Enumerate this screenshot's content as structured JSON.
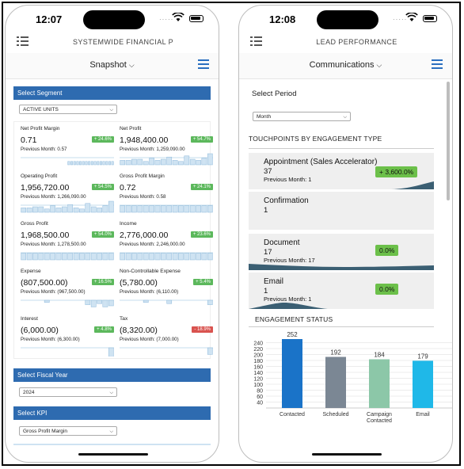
{
  "phone1": {
    "time": "12:07",
    "app_title": "SYSTEMWIDE FINANCIAL P",
    "subtitle": "Snapshot",
    "segment": {
      "header": "Select Segment",
      "value": "ACTIVE UNITS"
    },
    "metrics": [
      {
        "name": "Net Profit Margin",
        "value": "0.71",
        "badge": "+ 24.6%",
        "badge_tone": "positive",
        "prev": "Previous Month: 0.57",
        "bars": [
          0,
          0,
          0,
          0,
          0,
          0,
          0,
          0,
          0,
          0,
          0,
          0,
          0,
          0,
          0,
          0,
          0.3,
          0.3,
          0.3,
          0.3,
          0.3,
          0.3,
          0.3,
          0.3,
          0.3,
          0.3,
          0.3,
          0.3,
          0.3,
          0.3,
          0.3,
          0.3
        ]
      },
      {
        "name": "Net Profit",
        "value": "1,948,400.00",
        "badge": "+ 54.7%",
        "badge_tone": "positive",
        "prev": "Previous Month: 1,259,090.00",
        "bars": [
          0.4,
          0.4,
          0.5,
          0.5,
          0.3,
          0.6,
          0.4,
          0.5,
          0.7,
          0.4,
          0.3,
          0.8,
          0.5,
          0.4,
          0.6,
          1.0
        ]
      },
      {
        "name": "Operating Profit",
        "value": "1,956,720.00",
        "badge": "+ 54.5%",
        "badge_tone": "positive",
        "prev": "Previous Month: 1,266,090.00",
        "bars": [
          0.4,
          0.4,
          0.5,
          0.5,
          0.3,
          0.6,
          0.4,
          0.5,
          0.7,
          0.4,
          0.3,
          0.8,
          0.5,
          0.4,
          0.6,
          1.0
        ]
      },
      {
        "name": "Gross Profit Margin",
        "value": "0.72",
        "badge": "+ 24.1%",
        "badge_tone": "positive",
        "prev": "Previous Month: 0.58",
        "bars": [
          0.6,
          0.6,
          0.6,
          0.6,
          0.6,
          0.6,
          0.6,
          0.6,
          0.6,
          0.6,
          0.6,
          0.6,
          0.6,
          0.6,
          0.6,
          0.6
        ]
      },
      {
        "name": "Gross Profit",
        "value": "1,968,500.00",
        "badge": "+ 54.0%",
        "badge_tone": "positive",
        "prev": "Previous Month: 1,278,500.00",
        "bars": [
          0.6,
          0.6,
          0.6,
          0.6,
          0.6,
          0.6,
          0.6,
          0.6,
          0.6,
          0.6,
          0.6,
          0.6,
          0.6,
          0.6,
          0.6,
          0.6
        ]
      },
      {
        "name": "Income",
        "value": "2,776,000.00",
        "badge": "+ 23.6%",
        "badge_tone": "positive",
        "prev": "Previous Month: 2,246,000.00",
        "bars": [
          0.6,
          0.6,
          0.6,
          0.6,
          0.6,
          0.6,
          0.6,
          0.6,
          0.6,
          0.6,
          0.6,
          0.6,
          0.6,
          0.6,
          0.6,
          0.6
        ]
      },
      {
        "name": "Expense",
        "value": "(807,500.00)",
        "badge": "+ 16.5%",
        "badge_tone": "positive",
        "prev": "Previous Month: (967,500.00)",
        "bars": [
          0,
          0,
          0,
          0,
          0.2,
          0,
          0,
          0,
          0,
          0,
          0,
          0.4,
          0.6,
          0.3,
          0.6,
          0.5
        ]
      },
      {
        "name": "Non-Controllable Expense",
        "value": "(5,780.00)",
        "badge": "+ 5.4%",
        "badge_tone": "positive",
        "prev": "Previous Month: (6,110.00)",
        "bars": [
          0,
          0,
          0,
          0,
          0.2,
          0,
          0,
          0,
          0.3,
          0,
          0,
          0,
          0,
          0,
          0,
          0.4
        ]
      },
      {
        "name": "Interest",
        "value": "(6,000.00)",
        "badge": "+ 4.8%",
        "badge_tone": "positive",
        "prev": "Previous Month: (6,300.00)",
        "bars": [
          0,
          0,
          0,
          0,
          0,
          0,
          0,
          0,
          0,
          0,
          0,
          0,
          0,
          0,
          0,
          0.8
        ]
      },
      {
        "name": "Tax",
        "value": "(8,320.00)",
        "badge": "- 18.9%",
        "badge_tone": "negative",
        "prev": "Previous Month: (7,000.00)",
        "bars": [
          0,
          0,
          0,
          0,
          0,
          0,
          0,
          0,
          0,
          0,
          0,
          0,
          0,
          0,
          0,
          0.6
        ]
      }
    ],
    "fiscal_year": {
      "header": "Select Fiscal Year",
      "value": "2024"
    },
    "kpi": {
      "header": "Select KPI",
      "value": "Gross Profit Margin"
    }
  },
  "phone2": {
    "time": "12:08",
    "app_title": "LEAD PERFORMANCE",
    "subtitle": "Communications",
    "period": {
      "label": "Select Period",
      "value": "Month"
    },
    "touchpoints_title": "TOUCHPOINTS BY ENGAGEMENT TYPE",
    "touchpoints": [
      {
        "name": "Appointment (Sales Accelerator)",
        "count": "37",
        "prev": "Previous Month: 1",
        "badge": "+ 3,600.0%"
      },
      {
        "name": "Confirmation",
        "count": "1",
        "prev": "",
        "badge": ""
      },
      {
        "name": "Document",
        "count": "17",
        "prev": "Previous Month: 17",
        "badge": "0.0%"
      },
      {
        "name": "Email",
        "count": "1",
        "prev": "Previous Month: 1",
        "badge": "0.0%"
      }
    ],
    "engagement_title": "ENGAGEMENT STATUS"
  },
  "colors": {
    "section_header": "#2e6bb0",
    "badge_positive": "#5cb85c",
    "badge_negative": "#d9534f",
    "spark_fill": "#cfe3f2",
    "spark_stroke": "#8db9da",
    "touch_badge": "#6cc04a",
    "touch_area": "#3b5f73"
  },
  "chart_data": {
    "type": "bar",
    "title": "ENGAGEMENT STATUS",
    "categories": [
      "Contacted",
      "Scheduled",
      "Campaign Contacted",
      "Email"
    ],
    "values": [
      252,
      192,
      184,
      179
    ],
    "data_labels": [
      "252",
      "192",
      "184",
      "179"
    ],
    "colors": [
      "#1a73c8",
      "#7b8794",
      "#8cc7a8",
      "#1fb8e8"
    ],
    "yticks": [
      40,
      60,
      80,
      100,
      120,
      140,
      160,
      180,
      200,
      220,
      240
    ],
    "ylim": [
      20,
      260
    ],
    "xlabel": "",
    "ylabel": "",
    "grid": true
  }
}
